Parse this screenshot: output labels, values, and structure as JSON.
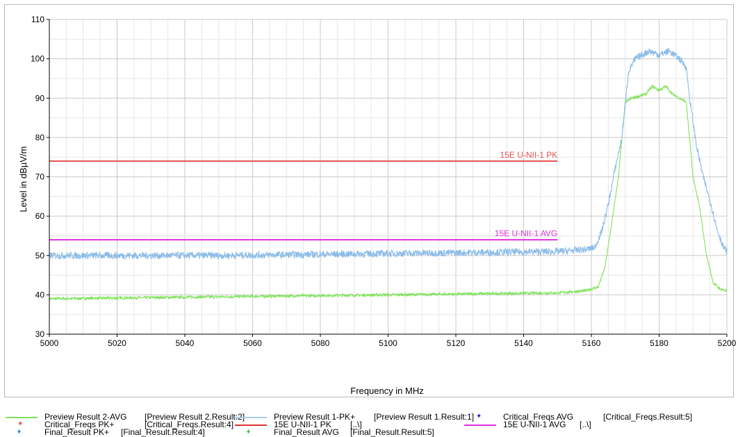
{
  "chart_data": {
    "type": "line",
    "xlabel": "Frequency in MHz",
    "ylabel": "Level in dBµV/m",
    "xlim": [
      5000,
      5200
    ],
    "ylim": [
      30,
      110
    ],
    "x_ticks": [
      "5000",
      "5020",
      "5040",
      "5060",
      "5080",
      "5100",
      "5120",
      "5140",
      "5160",
      "5180",
      "5200"
    ],
    "y_ticks": [
      "30",
      "40",
      "50",
      "60",
      "70",
      "80",
      "90",
      "100",
      "110"
    ],
    "grid": true,
    "series": [
      {
        "name": "Preview Result 2-AVG",
        "color": "#7fe35a",
        "x": [
          5000,
          5050,
          5100,
          5150,
          5158,
          5162,
          5164,
          5166,
          5168,
          5170,
          5172,
          5176,
          5178,
          5180,
          5182,
          5184,
          5186,
          5188,
          5190,
          5192,
          5194,
          5196,
          5198,
          5200
        ],
        "y": [
          39,
          39.5,
          40,
          40.5,
          41,
          42,
          47,
          58,
          70,
          89,
          90,
          91,
          93,
          92,
          93,
          91,
          90,
          89,
          70,
          62,
          50,
          43,
          41.5,
          41
        ]
      },
      {
        "name": "Preview Result 1-PK+",
        "color": "#8cbce8",
        "x": [
          5000,
          5050,
          5100,
          5150,
          5158,
          5161,
          5163,
          5165,
          5167,
          5169,
          5171,
          5173,
          5175,
          5177,
          5180,
          5183,
          5186,
          5188,
          5189,
          5191,
          5193,
          5195,
          5197,
          5199,
          5200
        ],
        "y": [
          50,
          50,
          50.5,
          51,
          51.5,
          52,
          56,
          63,
          72,
          80,
          97,
          100,
          101,
          102,
          101,
          102,
          100,
          98,
          90,
          78,
          70,
          64,
          57,
          52,
          51
        ]
      }
    ],
    "limit_lines": [
      {
        "name": "15E U-NII-1 PK",
        "label": "15E U-NII-1 PK",
        "color": "#e55050",
        "value": 74,
        "x_range": [
          5000,
          5150
        ]
      },
      {
        "name": "15E U-NII-1 AVG",
        "label": "15E U-NII-1 AVG",
        "color": "#e02ee0",
        "value": 54,
        "x_range": [
          5000,
          5150
        ]
      }
    ]
  },
  "legend": [
    {
      "name": "Preview Result 2-AVG",
      "ref": "[Preview Result 2.Result:2]",
      "style": "line",
      "color": "#7fe35a"
    },
    {
      "name": "Preview Result 1-PK+",
      "ref": "[Preview Result 1.Result:1]",
      "style": "line",
      "color": "#a9cbe9"
    },
    {
      "name": "Critical_Freqs AVG",
      "ref": "[Critical_Freqs.Result:5]",
      "style": "marker",
      "marker": "✦",
      "color": "#1a1ad0"
    },
    {
      "name": "Critical_Freqs PK+",
      "ref": "[Critical_Freqs.Result:4]",
      "style": "marker",
      "marker": "✶",
      "color": "#e03030"
    },
    {
      "name": "15E U-NII-1 PK",
      "ref": "[..\\]",
      "style": "line",
      "color": "#e03030"
    },
    {
      "name": "15E U-NII-1 AVG",
      "ref": "[..\\]",
      "style": "line",
      "color": "#e02ee0"
    },
    {
      "name": "Final_Result PK+",
      "ref": "[Final_Result.Result:4]",
      "style": "marker",
      "marker": "♦",
      "color": "#2a8adc"
    },
    {
      "name": "Final_Result AVG",
      "ref": "[Final_Result.Result:5]",
      "style": "marker",
      "marker": "♦",
      "color": "#3cc43c"
    }
  ]
}
